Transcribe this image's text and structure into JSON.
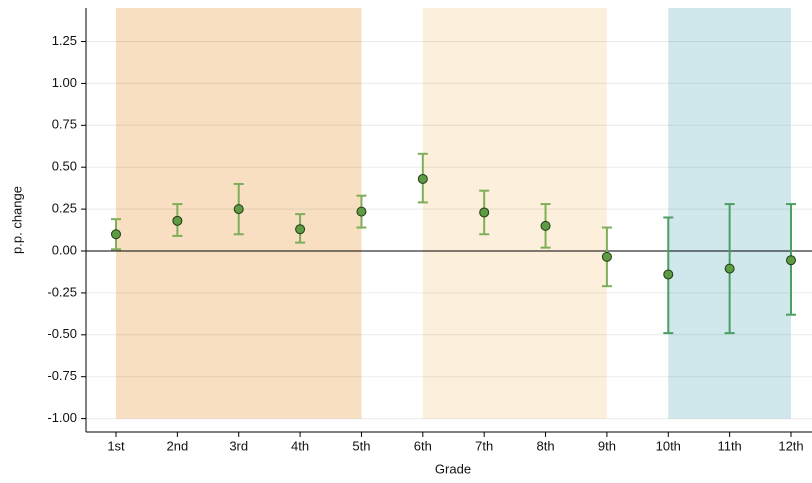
{
  "chart_data": {
    "type": "errorbar",
    "xlabel": "Grade",
    "ylabel": "p.p. change",
    "categories": [
      "1st",
      "2nd",
      "3rd",
      "4th",
      "5th",
      "6th",
      "7th",
      "8th",
      "9th",
      "10th",
      "11th",
      "12th"
    ],
    "values": [
      0.1,
      0.18,
      0.25,
      0.13,
      0.235,
      0.43,
      0.23,
      0.15,
      -0.035,
      -0.14,
      -0.105,
      -0.055
    ],
    "lower": [
      0.01,
      0.09,
      0.1,
      0.05,
      0.14,
      0.29,
      0.1,
      0.02,
      -0.21,
      -0.49,
      -0.49,
      -0.38
    ],
    "upper": [
      0.19,
      0.28,
      0.4,
      0.22,
      0.33,
      0.58,
      0.36,
      0.28,
      0.14,
      0.2,
      0.28,
      0.28
    ],
    "bar_colors": [
      "#7fae5a",
      "#7fae5a",
      "#7fae5a",
      "#7fae5a",
      "#7fae5a",
      "#7fae5a",
      "#7fae5a",
      "#7fae5a",
      "#7fae5a",
      "#4c9e63",
      "#4c9e63",
      "#4c9e63"
    ],
    "marker_color": "#5f9a45",
    "ylim": [
      -1.08,
      1.45
    ],
    "yticks": [
      {
        "value": -1,
        "label": "-1.00"
      },
      {
        "value": -0.75,
        "label": "-0.75"
      },
      {
        "value": -0.5,
        "label": "-0.50"
      },
      {
        "value": -0.25,
        "label": "-0.25"
      },
      {
        "value": 0,
        "label": "0.00"
      },
      {
        "value": 0.25,
        "label": "0.25"
      },
      {
        "value": 0.5,
        "label": "0.50"
      },
      {
        "value": 0.75,
        "label": "0.75"
      },
      {
        "value": 1,
        "label": "1.00"
      },
      {
        "value": 1.25,
        "label": "1.25"
      }
    ],
    "grid": true,
    "regions": [
      {
        "from": "1st",
        "to": "5th",
        "ymin": -1,
        "color": "#f8dfc1"
      },
      {
        "from": "6th",
        "to": "9th",
        "ymin": -1,
        "color": "#fcefdb"
      },
      {
        "from": "10th",
        "to": "12th",
        "ymin": -1,
        "color": "#d0e8ec"
      }
    ]
  }
}
